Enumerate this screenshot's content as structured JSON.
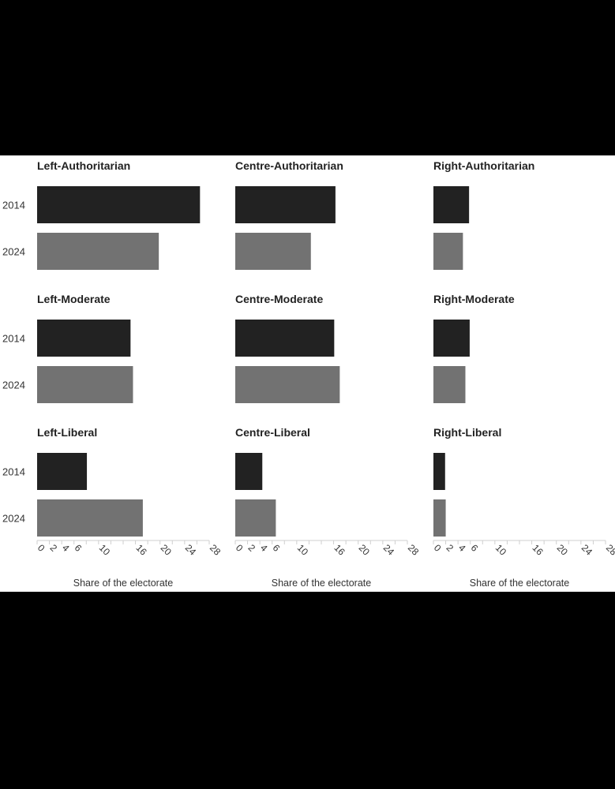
{
  "chart_data": {
    "type": "bar",
    "orientation": "horizontal",
    "layout": "small-multiples",
    "categories": [
      "2014",
      "2024"
    ],
    "xlabel": "Share of the electorate",
    "xlim": [
      0,
      28
    ],
    "xticks": [
      0,
      2,
      4,
      6,
      10,
      16,
      20,
      24,
      28
    ],
    "colors": {
      "2014": "#222222",
      "2024": "#727272"
    },
    "panels": [
      {
        "title": "Left-Authoritarian",
        "values": [
          26.5,
          19.8
        ]
      },
      {
        "title": "Centre-Authoritarian",
        "values": [
          16.3,
          12.3
        ]
      },
      {
        "title": "Right-Authoritarian",
        "values": [
          5.8,
          4.8
        ]
      },
      {
        "title": "Left-Moderate",
        "values": [
          15.2,
          15.6
        ]
      },
      {
        "title": "Centre-Moderate",
        "values": [
          16.1,
          17.0
        ]
      },
      {
        "title": "Right-Moderate",
        "values": [
          5.9,
          5.2
        ]
      },
      {
        "title": "Left-Liberal",
        "values": [
          8.1,
          17.2
        ]
      },
      {
        "title": "Centre-Liberal",
        "values": [
          4.4,
          6.6
        ]
      },
      {
        "title": "Right-Liberal",
        "values": [
          1.9,
          2.0
        ]
      }
    ]
  }
}
